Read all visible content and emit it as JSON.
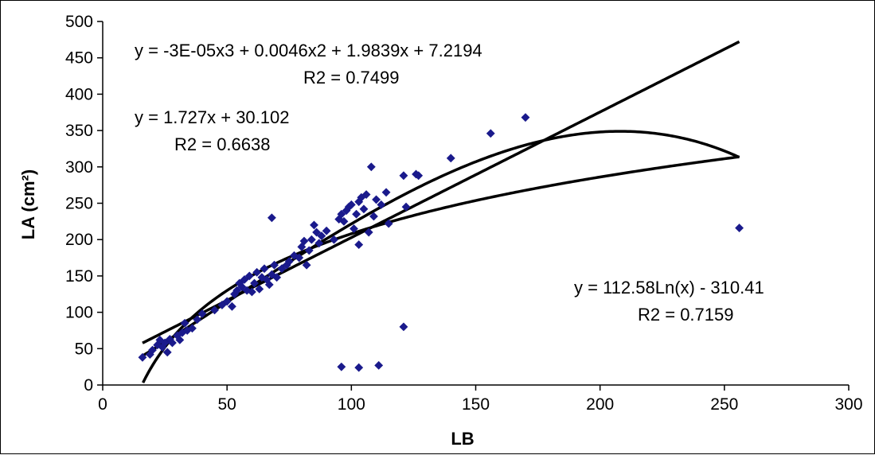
{
  "chart_data": {
    "type": "scatter",
    "title": "",
    "xlabel": "LB",
    "ylabel": "LA (cm²)",
    "xlim": [
      0,
      300
    ],
    "ylim": [
      0,
      500
    ],
    "x_ticks": [
      "0",
      "50",
      "100",
      "150",
      "200",
      "250",
      "300"
    ],
    "y_ticks": [
      "0",
      "50",
      "100",
      "150",
      "200",
      "250",
      "300",
      "350",
      "400",
      "450",
      "500"
    ],
    "grid": false,
    "legend": "none",
    "colors": {
      "points": "#1a1a8c",
      "trend_lines": "#000000"
    },
    "points": [
      [
        16,
        38
      ],
      [
        19,
        42
      ],
      [
        20,
        48
      ],
      [
        22,
        55
      ],
      [
        23,
        62
      ],
      [
        24,
        52
      ],
      [
        25,
        58
      ],
      [
        26,
        45
      ],
      [
        27,
        63
      ],
      [
        28,
        58
      ],
      [
        30,
        68
      ],
      [
        31,
        62
      ],
      [
        32,
        72
      ],
      [
        33,
        85
      ],
      [
        34,
        75
      ],
      [
        36,
        78
      ],
      [
        38,
        90
      ],
      [
        40,
        98
      ],
      [
        45,
        103
      ],
      [
        48,
        110
      ],
      [
        50,
        115
      ],
      [
        52,
        108
      ],
      [
        53,
        125
      ],
      [
        54,
        130
      ],
      [
        55,
        140
      ],
      [
        56,
        135
      ],
      [
        57,
        145
      ],
      [
        58,
        130
      ],
      [
        59,
        150
      ],
      [
        60,
        128
      ],
      [
        61,
        140
      ],
      [
        62,
        155
      ],
      [
        63,
        132
      ],
      [
        64,
        148
      ],
      [
        65,
        160
      ],
      [
        66,
        145
      ],
      [
        67,
        138
      ],
      [
        68,
        152
      ],
      [
        69,
        165
      ],
      [
        70,
        148
      ],
      [
        68,
        230
      ],
      [
        72,
        160
      ],
      [
        74,
        165
      ],
      [
        75,
        170
      ],
      [
        77,
        178
      ],
      [
        79,
        175
      ],
      [
        80,
        190
      ],
      [
        81,
        198
      ],
      [
        82,
        165
      ],
      [
        83,
        185
      ],
      [
        84,
        200
      ],
      [
        85,
        220
      ],
      [
        86,
        210
      ],
      [
        87,
        195
      ],
      [
        88,
        205
      ],
      [
        90,
        212
      ],
      [
        93,
        200
      ],
      [
        95,
        228
      ],
      [
        96,
        235
      ],
      [
        97,
        225
      ],
      [
        98,
        240
      ],
      [
        99,
        245
      ],
      [
        100,
        248
      ],
      [
        101,
        215
      ],
      [
        102,
        235
      ],
      [
        103,
        252
      ],
      [
        103,
        193
      ],
      [
        104,
        258
      ],
      [
        105,
        242
      ],
      [
        106,
        262
      ],
      [
        107,
        210
      ],
      [
        108,
        300
      ],
      [
        109,
        232
      ],
      [
        110,
        255
      ],
      [
        112,
        248
      ],
      [
        114,
        265
      ],
      [
        115,
        222
      ],
      [
        121,
        288
      ],
      [
        122,
        245
      ],
      [
        126,
        290
      ],
      [
        127,
        288
      ],
      [
        140,
        312
      ],
      [
        156,
        346
      ],
      [
        170,
        368
      ],
      [
        256,
        216
      ],
      [
        96,
        25
      ],
      [
        103,
        24
      ],
      [
        111,
        27
      ],
      [
        121,
        80
      ]
    ],
    "trendlines": [
      {
        "kind": "polynomial",
        "coefficients": [
          7.2194,
          1.9839,
          0.0046,
          -3e-05
        ],
        "x_range": [
          16.5,
          256
        ],
        "equation": "y = -3E-05x3 + 0.0046x2 + 1.9839x + 7.2194",
        "r2_label": "R2 = 0.7499"
      },
      {
        "kind": "linear",
        "slope": 1.727,
        "intercept": 30.102,
        "x_range": [
          16,
          256
        ],
        "equation": "y = 1.727x + 30.102",
        "r2_label": "R2 = 0.6638"
      },
      {
        "kind": "logarithmic",
        "a": 112.58,
        "b": -310.41,
        "x_range": [
          16.2,
          256
        ],
        "equation": "y = 112.58Ln(x) - 310.41",
        "r2_label": "R2 = 0.7159"
      }
    ]
  }
}
